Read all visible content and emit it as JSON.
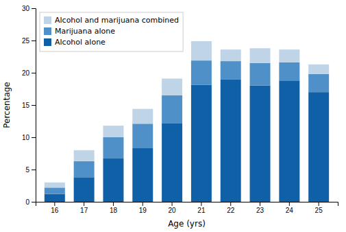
{
  "chart_data": {
    "type": "bar",
    "stacked": true,
    "xlabel": "Age (yrs)",
    "ylabel": "Percentage",
    "categories": [
      "16",
      "17",
      "18",
      "19",
      "20",
      "21",
      "22",
      "23",
      "24",
      "25"
    ],
    "series": [
      {
        "name": "Alcohol alone",
        "color": "#1060a8",
        "values": [
          1.2,
          3.8,
          6.7,
          8.3,
          12.2,
          18.1,
          19.0,
          18.0,
          18.8,
          17.0
        ]
      },
      {
        "name": "Marijuana alone",
        "color": "#5090c8",
        "values": [
          1.0,
          2.5,
          3.3,
          3.8,
          4.3,
          3.8,
          2.8,
          3.5,
          2.8,
          2.8
        ]
      },
      {
        "name": "Alcohol and marijuana combined",
        "color": "#c0d4e8",
        "values": [
          0.8,
          1.7,
          1.8,
          2.3,
          2.6,
          3.0,
          1.8,
          2.3,
          2.0,
          1.5
        ]
      }
    ],
    "ylim": [
      0,
      30
    ],
    "yticks": [
      0,
      5,
      10,
      15,
      20,
      25,
      30
    ],
    "grid": false,
    "legend": "upper-left"
  }
}
